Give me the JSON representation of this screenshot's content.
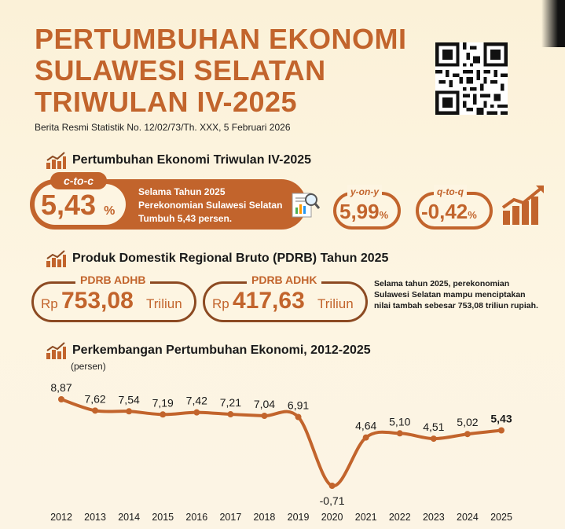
{
  "header": {
    "title_lines": [
      "PERTUMBUHAN EKONOMI",
      "SULAWESI SELATAN",
      "TRIWULAN IV-2025"
    ],
    "subtitle": "Berita Resmi Statistik No. 12/02/73/Th. XXX, 5 Februari 2026"
  },
  "colors": {
    "accent": "#c2642c",
    "accent_dark": "#8c4a22",
    "background": "#fcf3df",
    "text": "#1a1a1a"
  },
  "section1": {
    "heading": "Pertumbuhan Ekonomi Triwulan IV-2025",
    "ctoc": {
      "tag": "c-to-c",
      "value": "5,43",
      "unit": "%",
      "description": "Selama Tahun 2025 Perekonomian Sulawesi Selatan Tumbuh 5,43 persen."
    },
    "yoy": {
      "tag": "y-on-y",
      "value": "5,99",
      "unit": "%"
    },
    "qtoq": {
      "tag": "q-to-q",
      "value": "-0,42",
      "unit": "%"
    }
  },
  "section2": {
    "heading": "Produk Domestik Regional Bruto (PDRB) Tahun 2025",
    "adhb": {
      "tag": "PDRB ADHB",
      "currency": "Rp",
      "value": "753,08",
      "unit": "Triliun"
    },
    "adhk": {
      "tag": "PDRB ADHK",
      "currency": "Rp",
      "value": "417,63",
      "unit": "Triliun"
    },
    "note": "Selama tahun 2025, perekonomian Sulawesi Selatan mampu menciptakan nilai tambah sebesar 753,08 triliun rupiah."
  },
  "section3": {
    "heading": "Perkembangan Pertumbuhan Ekonomi, 2012-2025",
    "unit_label": "(persen)"
  },
  "chart_data": {
    "type": "line",
    "title": "Perkembangan Pertumbuhan Ekonomi, 2012-2025",
    "ylabel": "(persen)",
    "xlabel": "",
    "categories": [
      "2012",
      "2013",
      "2014",
      "2015",
      "2016",
      "2017",
      "2018",
      "2019",
      "2020",
      "2021",
      "2022",
      "2023",
      "2024",
      "2025"
    ],
    "values": [
      8.87,
      7.62,
      7.54,
      7.19,
      7.42,
      7.21,
      7.04,
      6.91,
      -0.71,
      4.64,
      5.1,
      4.51,
      5.02,
      5.43
    ],
    "value_labels": [
      "8,87",
      "7,62",
      "7,54",
      "7,19",
      "7,42",
      "7,21",
      "7,04",
      "6,91",
      "-0,71",
      "4,64",
      "5,10",
      "4,51",
      "5,02",
      "5,43"
    ],
    "ylim": [
      -0.71,
      8.87
    ],
    "grid": false,
    "line_color": "#c2642c"
  }
}
